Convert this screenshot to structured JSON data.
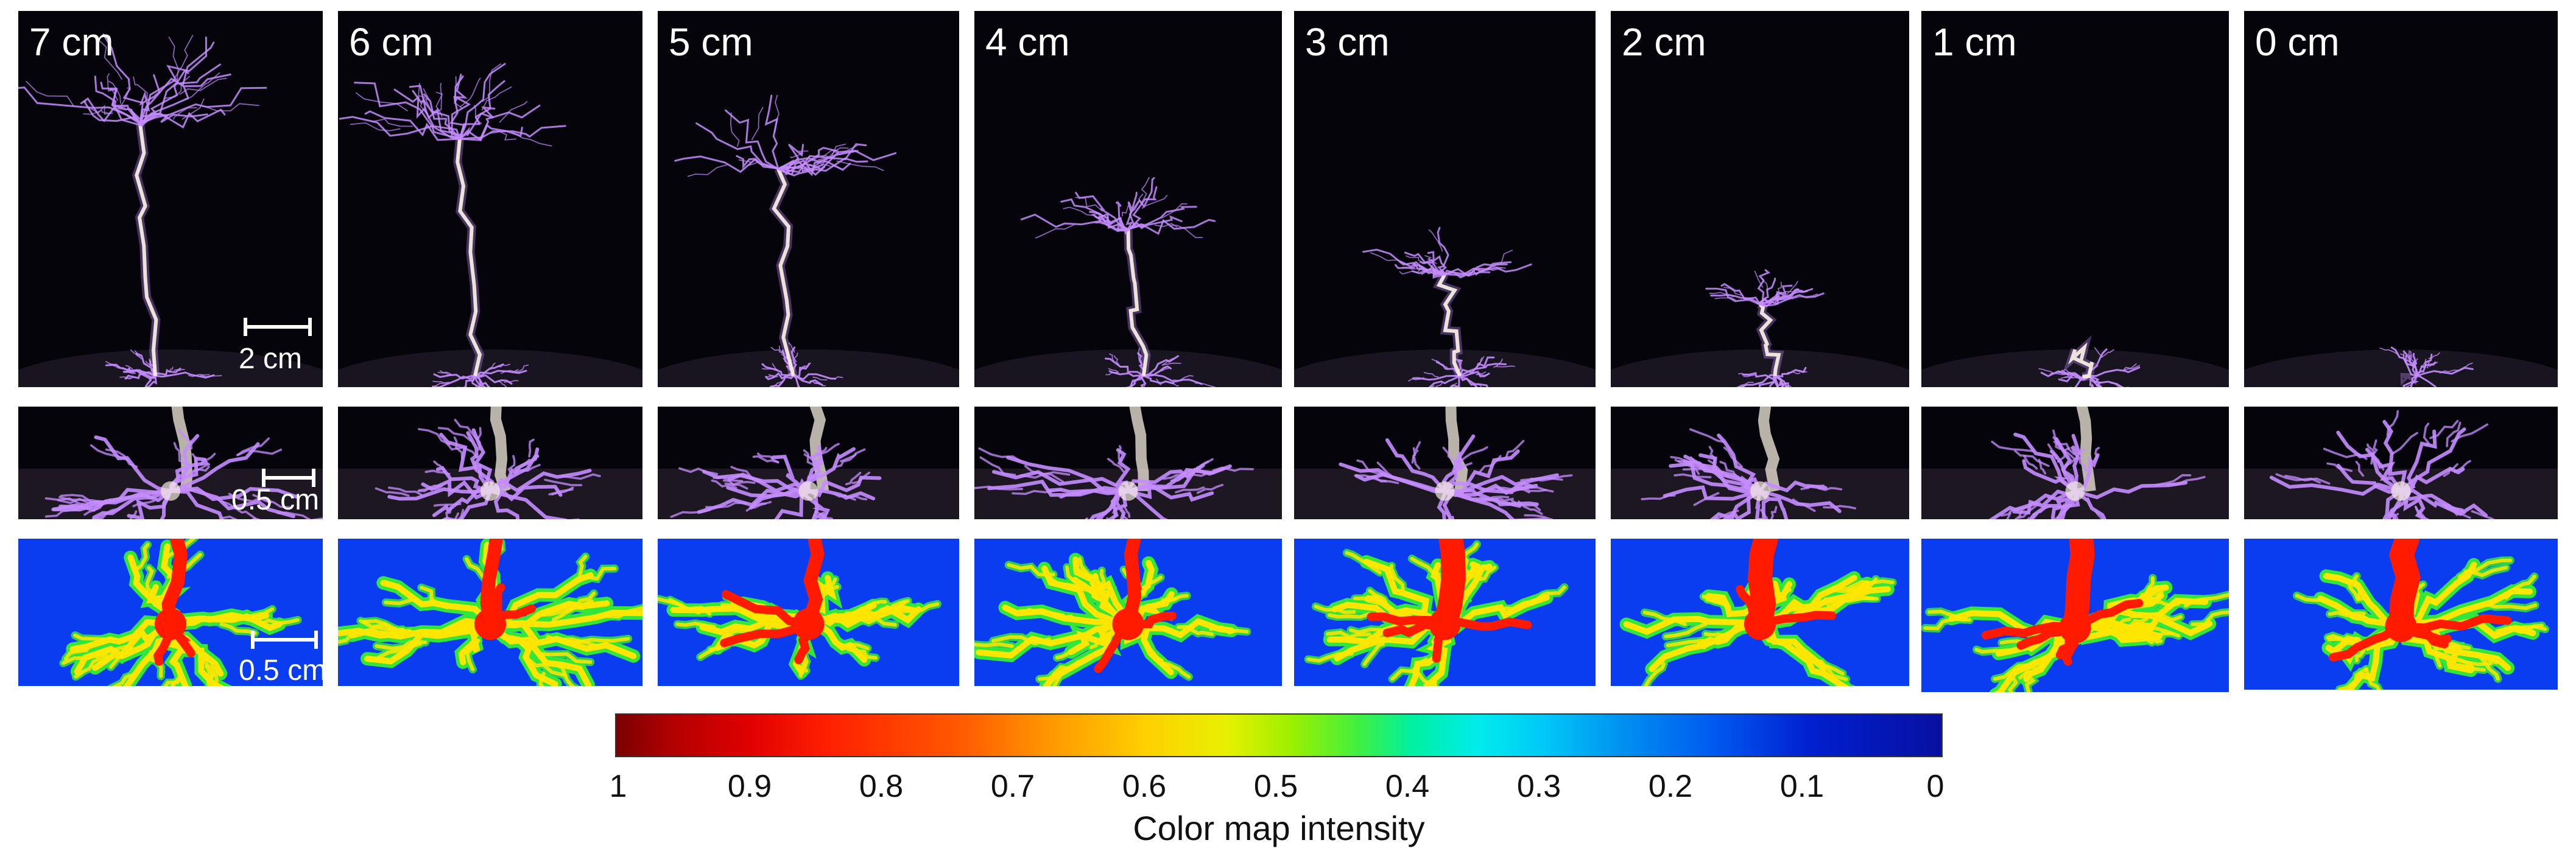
{
  "distance_labels": [
    "7 cm",
    "6 cm",
    "5 cm",
    "4 cm",
    "3 cm",
    "2 cm",
    "1 cm",
    "0 cm"
  ],
  "scale_bars": {
    "top_row": "2 cm",
    "middle_row": "0.5 cm",
    "bottom_row": "0.5 cm"
  },
  "colorbar": {
    "title": "Color map intensity",
    "ticks": [
      "1",
      "0.9",
      "0.8",
      "0.7",
      "0.6",
      "0.5",
      "0.4",
      "0.3",
      "0.2",
      "0.1",
      "0"
    ],
    "high_color": "#7a0000",
    "mid_color": "#00f0a0",
    "low_color": "#0810a0"
  },
  "colors": {
    "discharge_glow": "#c58cff",
    "channel_core": "#f4ecdf",
    "heatmap_background": "#0a3cf0",
    "heatmap_high": "#ff1a00",
    "heatmap_mid": "#ffe600",
    "heatmap_low": "#33e63a"
  }
}
